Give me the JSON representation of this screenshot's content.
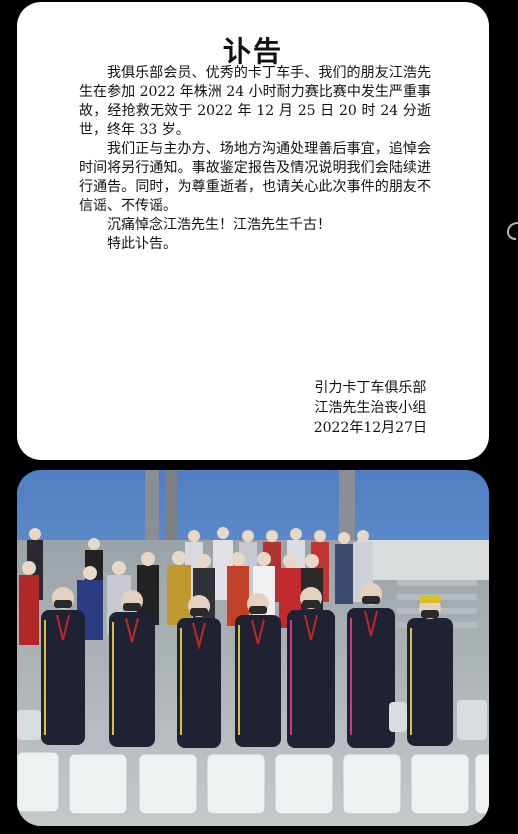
{
  "notice": {
    "title": "讣告",
    "paragraphs": [
      "我俱乐部会员、优秀的卡丁车手、我们的朋友江浩先生在参加 2022 年株洲 24 小时耐力赛比赛中发生严重事故，经抢救无效于 2022 年 12 月 25 日 20 时 24 分逝世，终年 33 岁。",
      "我们正与主办方、场地方沟通处理善后事宜，追悼会时间将另行通知。事故鉴定报告及情况说明我们会陆续进行通告。同时，为尊重逝者，也请关心此次事件的朋友不信谣、不传谣。",
      "沉痛悼念江浩先生！江浩先生千古！",
      "特此讣告。"
    ],
    "signature": {
      "organization": "引力卡丁车俱乐部",
      "committee": "江浩先生治丧小组",
      "date": "2022年12月27日"
    }
  },
  "photo": {
    "subject": "team-group-photo"
  },
  "colors": {
    "background": "#000000",
    "card": "#ffffff",
    "sky": "#5b89c9",
    "suit": "#1e2233"
  }
}
